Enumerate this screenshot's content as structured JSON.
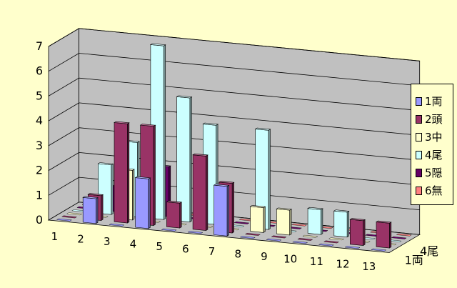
{
  "chart_data": {
    "type": "bar3d",
    "title": "",
    "xlabel": "",
    "ylabel": "",
    "ylim": [
      0,
      7
    ],
    "yticks": [
      "0",
      "1",
      "2",
      "3",
      "4",
      "5",
      "6",
      "7"
    ],
    "categories": [
      "1",
      "2",
      "3",
      "4",
      "5",
      "6",
      "7",
      "8",
      "9",
      "10",
      "11",
      "12",
      "13"
    ],
    "depth_tick_labels": [
      "1両",
      "4尾"
    ],
    "grid": true,
    "legend_position": "right",
    "series": [
      {
        "name": "1両",
        "color": "#9999ff",
        "values": [
          0,
          1,
          0,
          2,
          0,
          0,
          2,
          0,
          0,
          0,
          0,
          0,
          0
        ]
      },
      {
        "name": "2頭",
        "color": "#993366",
        "values": [
          0,
          1,
          4,
          4,
          1,
          3,
          2,
          0,
          0,
          0,
          0,
          1,
          1
        ]
      },
      {
        "name": "3中",
        "color": "#ffffcc",
        "values": [
          0,
          0,
          2,
          0,
          0,
          0,
          0,
          1,
          1,
          0,
          0,
          0,
          0
        ]
      },
      {
        "name": "4尾",
        "color": "#ccffff",
        "values": [
          0,
          2,
          3,
          7,
          5,
          4,
          0,
          4,
          0,
          1,
          1,
          0,
          0
        ]
      },
      {
        "name": "5隠",
        "color": "#660066",
        "values": [
          0,
          1,
          1,
          2,
          0,
          0,
          0,
          0,
          0,
          0,
          0,
          0,
          0
        ]
      },
      {
        "name": "6無",
        "color": "#ff8080",
        "values": [
          0,
          0,
          0,
          0,
          0,
          0,
          0,
          0,
          0,
          0,
          0,
          0,
          0
        ]
      }
    ]
  }
}
